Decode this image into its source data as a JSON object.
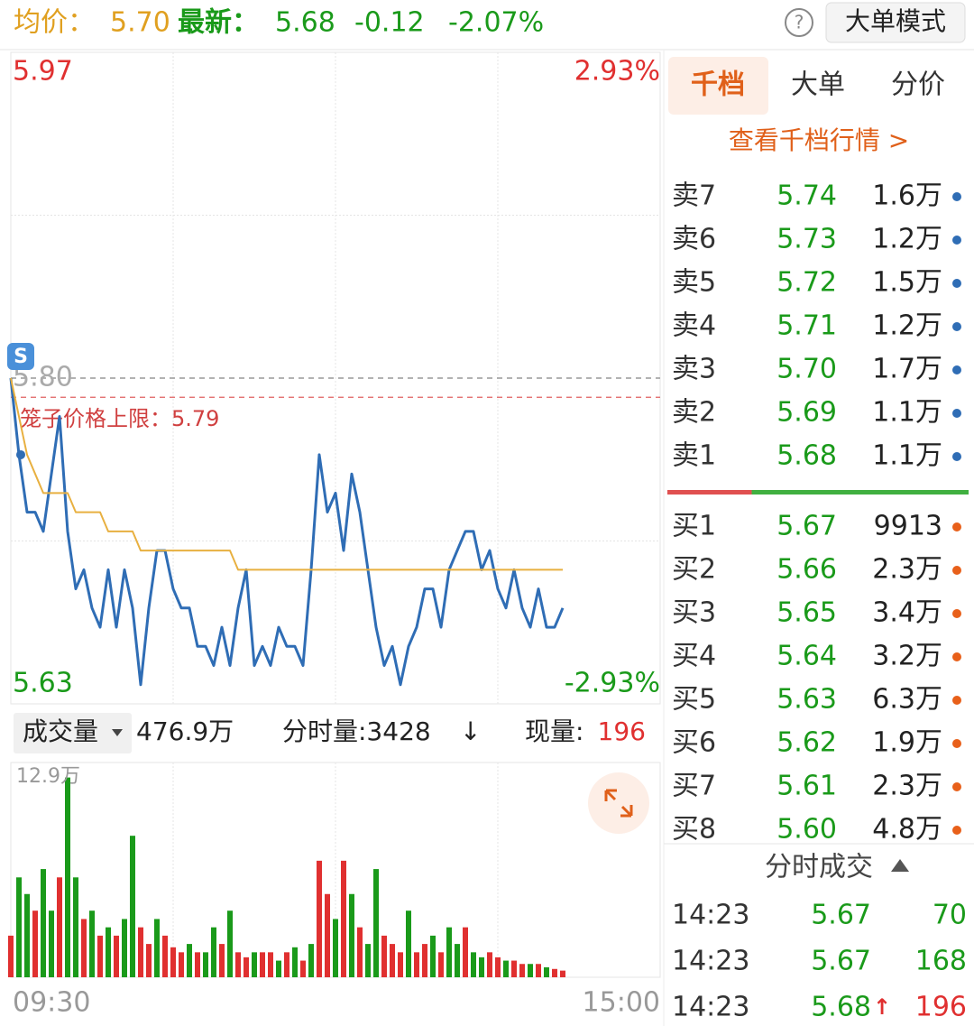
{
  "header": {
    "avg_label": "均价：",
    "avg": "5.70",
    "latest_label": "最新：",
    "latest": "5.68",
    "change": "-0.12",
    "change_pct": "-2.07%",
    "help": "?",
    "mode_button": "大单模式"
  },
  "chart_data": [
    {
      "type": "line",
      "badge": "S",
      "ylim": [
        5.63,
        5.97
      ],
      "yticks": [
        5.97,
        5.63
      ],
      "y2lim": [
        -2.93,
        2.93
      ],
      "y2ticks": [
        {
          "value": 2.93,
          "label": "2.93%"
        },
        {
          "value": -2.93,
          "label": "-2.93%"
        }
      ],
      "grid": true,
      "ref_line": {
        "value": 5.8,
        "label": "5.80"
      },
      "cap_line": {
        "label": "笼子价格上限：",
        "value": 5.79
      },
      "series": [
        {
          "color": "#2f6db5",
          "values": [
            5.8,
            5.76,
            5.73,
            5.73,
            5.72,
            5.75,
            5.78,
            5.72,
            5.69,
            5.7,
            5.68,
            5.67,
            5.7,
            5.67,
            5.7,
            5.68,
            5.64,
            5.68,
            5.71,
            5.71,
            5.69,
            5.68,
            5.68,
            5.66,
            5.66,
            5.65,
            5.67,
            5.65,
            5.68,
            5.7,
            5.65,
            5.66,
            5.65,
            5.67,
            5.66,
            5.66,
            5.65,
            5.7,
            5.76,
            5.73,
            5.74,
            5.71,
            5.75,
            5.73,
            5.7,
            5.67,
            5.65,
            5.66,
            5.64,
            5.66,
            5.67,
            5.69,
            5.69,
            5.67,
            5.7,
            5.71,
            5.72,
            5.72,
            5.7,
            5.71,
            5.69,
            5.68,
            5.7,
            5.68,
            5.67,
            5.69,
            5.67,
            5.67,
            5.68,
            null,
            null,
            null,
            null,
            null,
            null,
            null,
            null,
            null,
            null,
            null,
            null
          ]
        },
        {
          "color": "#e8b040",
          "values": [
            5.8,
            5.78,
            5.76,
            5.75,
            5.74,
            5.74,
            5.74,
            5.74,
            5.73,
            5.73,
            5.73,
            5.73,
            5.72,
            5.72,
            5.72,
            5.72,
            5.71,
            5.71,
            5.71,
            5.71,
            5.71,
            5.71,
            5.71,
            5.71,
            5.71,
            5.71,
            5.71,
            5.71,
            5.7,
            5.7,
            5.7,
            5.7,
            5.7,
            5.7,
            5.7,
            5.7,
            5.7,
            5.7,
            5.7,
            5.7,
            5.7,
            5.7,
            5.7,
            5.7,
            5.7,
            5.7,
            5.7,
            5.7,
            5.7,
            5.7,
            5.7,
            5.7,
            5.7,
            5.7,
            5.7,
            5.7,
            5.7,
            5.7,
            5.7,
            5.7,
            5.7,
            5.7,
            5.7,
            5.7,
            5.7,
            5.7,
            5.7,
            5.7,
            5.7,
            null,
            null,
            null,
            null,
            null,
            null,
            null,
            null,
            null,
            null,
            null,
            null
          ]
        }
      ]
    },
    {
      "type": "bar",
      "categories": [
        "09:30",
        null,
        null,
        null,
        null,
        null,
        null,
        null,
        null,
        null,
        null,
        null,
        null,
        null,
        null,
        null,
        null,
        null,
        null,
        null,
        null,
        null,
        null,
        null,
        null,
        null,
        null,
        null,
        null,
        null,
        null,
        null,
        null,
        null,
        null,
        null,
        null,
        null,
        null,
        null,
        null,
        null,
        null,
        null,
        null,
        null,
        null,
        null,
        null,
        null,
        null,
        null,
        null,
        null,
        null,
        null,
        null,
        null,
        null,
        null,
        null,
        null,
        null,
        null,
        null,
        null,
        null,
        null,
        null,
        null,
        null,
        null,
        null,
        null,
        null,
        null,
        null,
        null,
        null,
        null,
        "15:00"
      ],
      "ylim": [
        0,
        12.9
      ],
      "yticks": [
        {
          "value": 12.9,
          "label": "12.9万"
        }
      ],
      "values": [
        2.5,
        6.0,
        5.0,
        4.0,
        6.5,
        4.0,
        6.0,
        12.0,
        6.0,
        3.5,
        4.0,
        2.5,
        3.0,
        2.5,
        3.5,
        8.5,
        3.0,
        2.0,
        3.5,
        2.5,
        1.8,
        1.5,
        2.0,
        1.5,
        1.5,
        3.0,
        2.0,
        4.0,
        1.5,
        1.2,
        1.5,
        1.5,
        1.5,
        1.0,
        1.5,
        1.8,
        1.0,
        2.0,
        7.0,
        5.0,
        3.5,
        7.0,
        5.0,
        3.0,
        2.0,
        6.5,
        2.5,
        2.0,
        1.5,
        4.0,
        1.5,
        2.0,
        2.5,
        1.5,
        3.0,
        2.0,
        3.0,
        1.5,
        1.2,
        1.5,
        1.2,
        1.0,
        1.0,
        0.8,
        0.8,
        0.8,
        0.6,
        0.5,
        0.4,
        null,
        null,
        null,
        null,
        null,
        null,
        null,
        null,
        null,
        null,
        null,
        null
      ],
      "colors": [
        "#e03030",
        "#1a9a1a",
        "#1a9a1a",
        "#e03030",
        "#1a9a1a",
        "#1a9a1a",
        "#e03030",
        "#1a9a1a",
        "#1a9a1a",
        "#e03030",
        "#1a9a1a",
        "#e03030",
        "#1a9a1a",
        "#e03030",
        "#1a9a1a",
        "#1a9a1a",
        "#e03030",
        "#e03030",
        "#1a9a1a",
        "#e03030",
        "#e03030",
        "#e03030",
        "#1a9a1a",
        "#e03030",
        "#1a9a1a",
        "#1a9a1a",
        "#e03030",
        "#1a9a1a",
        "#e03030",
        "#e03030",
        "#1a9a1a",
        "#e03030",
        "#e03030",
        "#1a9a1a",
        "#e03030",
        "#1a9a1a",
        "#e03030",
        "#1a9a1a",
        "#e03030",
        "#e03030",
        "#1a9a1a",
        "#e03030",
        "#1a9a1a",
        "#e03030",
        "#1a9a1a",
        "#1a9a1a",
        "#e03030",
        "#e03030",
        "#e03030",
        "#1a9a1a",
        "#e03030",
        "#e03030",
        "#1a9a1a",
        "#e03030",
        "#1a9a1a",
        "#1a9a1a",
        "#e03030",
        "#1a9a1a",
        "#1a9a1a",
        "#e03030",
        "#e03030",
        "#1a9a1a",
        "#e03030",
        "#e03030",
        "#1a9a1a",
        "#e03030",
        "#1a9a1a",
        "#e03030",
        "#e03030",
        null,
        null,
        null,
        null,
        null,
        null,
        null,
        null,
        null,
        null,
        null,
        null
      ]
    }
  ],
  "toolbar": {
    "volume_select": "成交量",
    "total_volume": "476.9万",
    "minute_volume": "分时量:3428",
    "trend_arrow": "↓",
    "current_label": "现量:",
    "current": "196"
  },
  "order_book": {
    "tabs": [
      "千档",
      "大单",
      "分价"
    ],
    "link": "查看千档行情 >",
    "asks": [
      [
        "卖7",
        "5.74",
        "1.6万"
      ],
      [
        "卖6",
        "5.73",
        "1.2万"
      ],
      [
        "卖5",
        "5.72",
        "1.5万"
      ],
      [
        "卖4",
        "5.71",
        "1.2万"
      ],
      [
        "卖3",
        "5.70",
        "1.7万"
      ],
      [
        "卖2",
        "5.69",
        "1.1万"
      ],
      [
        "卖1",
        "5.68",
        "1.1万"
      ]
    ],
    "buy_ratio": 28,
    "bids": [
      [
        "买1",
        "5.67",
        "9913"
      ],
      [
        "买2",
        "5.66",
        "2.3万"
      ],
      [
        "买3",
        "5.65",
        "3.4万"
      ],
      [
        "买4",
        "5.64",
        "3.2万"
      ],
      [
        "买5",
        "5.63",
        "6.3万"
      ],
      [
        "买6",
        "5.62",
        "1.9万"
      ],
      [
        "买7",
        "5.61",
        "2.3万"
      ],
      [
        "买8",
        "5.60",
        "4.8万"
      ]
    ]
  },
  "trades": {
    "title": "分时成交",
    "arrow": "↑",
    "rows": [
      [
        "14:23",
        "5.67",
        "70"
      ],
      [
        "14:23",
        "5.67",
        "168"
      ],
      [
        "14:23",
        "5.68",
        "196"
      ]
    ],
    "volume_colors": [
      "#1a9a1a",
      "#1a9a1a",
      "#e03030"
    ]
  }
}
